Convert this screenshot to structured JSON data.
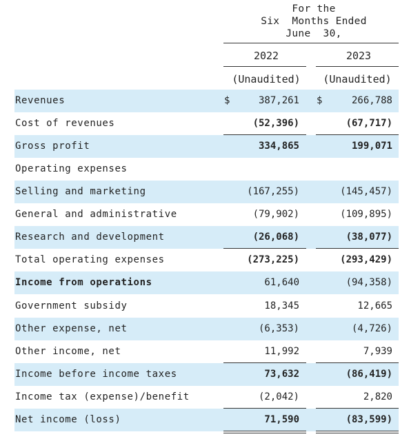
{
  "header": {
    "line1": "For the",
    "line2": "Six  Months Ended",
    "line3": "June  30,",
    "year1": "2022",
    "year2": "2023",
    "unaudited1": "(Unaudited)",
    "unaudited2": "(Unaudited)"
  },
  "rows": [
    {
      "label": "Revenues",
      "v1": "387,261",
      "v2": "266,788",
      "dollar": "$"
    },
    {
      "label": "Cost of revenues",
      "v1": "(52,396)",
      "v2": "(67,717)"
    },
    {
      "label": "Gross profit",
      "v1": "334,865",
      "v2": "199,071"
    },
    {
      "label": "Operating expenses",
      "v1": "",
      "v2": ""
    },
    {
      "label": "Selling and marketing",
      "v1": "(167,255)",
      "v2": "(145,457)"
    },
    {
      "label": "General and administrative",
      "v1": "(79,902)",
      "v2": "(109,895)"
    },
    {
      "label": "Research and development",
      "v1": "(26,068)",
      "v2": "(38,077)"
    },
    {
      "label": "Total operating expenses",
      "v1": "(273,225)",
      "v2": "(293,429)"
    },
    {
      "label": "Income from operations",
      "v1": "61,640",
      "v2": "(94,358)"
    },
    {
      "label": "Government subsidy",
      "v1": "18,345",
      "v2": "12,665"
    },
    {
      "label": "Other expense, net",
      "v1": "(6,353)",
      "v2": "(4,726)"
    },
    {
      "label": "Other income, net",
      "v1": "11,992",
      "v2": "7,939"
    },
    {
      "label": "Income before income taxes",
      "v1": "73,632",
      "v2": "(86,419)"
    },
    {
      "label": "Income tax (expense)/benefit",
      "v1": "(2,042)",
      "v2": "2,820"
    },
    {
      "label": "Net income (loss)",
      "v1": "71,590",
      "v2": "(83,599)"
    }
  ]
}
